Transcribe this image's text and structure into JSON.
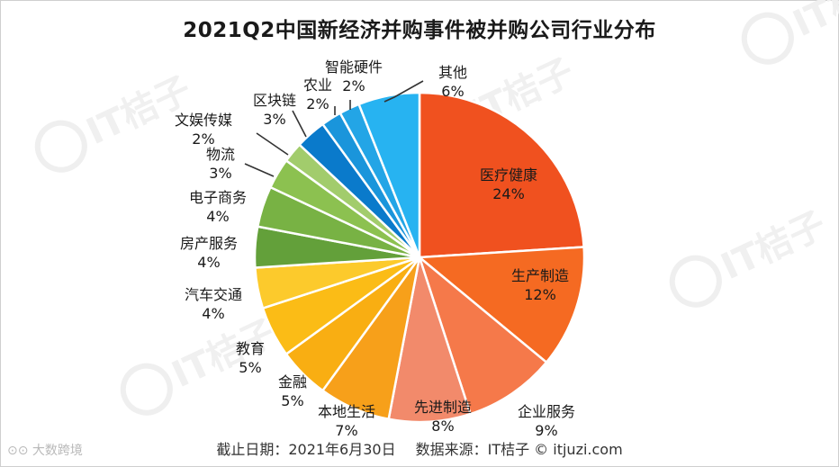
{
  "chart_data": {
    "type": "pie",
    "title": "2021Q2中国新经济并购事件被并购公司行业分布",
    "start_angle_deg": 0,
    "direction": "clockwise",
    "slices": [
      {
        "label": "医疗健康",
        "value": 24,
        "value_text": "24%",
        "color": "#F0511F"
      },
      {
        "label": "生产制造",
        "value": 12,
        "value_text": "12%",
        "color": "#F56A22"
      },
      {
        "label": "企业服务",
        "value": 9,
        "value_text": "9%",
        "color": "#F5794A"
      },
      {
        "label": "先进制造",
        "value": 8,
        "value_text": "8%",
        "color": "#F28A6B"
      },
      {
        "label": "本地生活",
        "value": 7,
        "value_text": "7%",
        "color": "#F7A01A"
      },
      {
        "label": "金融",
        "value": 5,
        "value_text": "5%",
        "color": "#F9AE12"
      },
      {
        "label": "教育",
        "value": 5,
        "value_text": "5%",
        "color": "#FBBC16"
      },
      {
        "label": "汽车交通",
        "value": 4,
        "value_text": "4%",
        "color": "#FCCA2C"
      },
      {
        "label": "房产服务",
        "value": 4,
        "value_text": "4%",
        "color": "#63A03A"
      },
      {
        "label": "电子商务",
        "value": 4,
        "value_text": "4%",
        "color": "#78B244"
      },
      {
        "label": "物流",
        "value": 3,
        "value_text": "3%",
        "color": "#8CC150"
      },
      {
        "label": "文娱传媒",
        "value": 2,
        "value_text": "2%",
        "color": "#A2CC6C"
      },
      {
        "label": "区块链",
        "value": 3,
        "value_text": "3%",
        "color": "#0A7ACB"
      },
      {
        "label": "农业",
        "value": 2,
        "value_text": "2%",
        "color": "#1A95DB"
      },
      {
        "label": "智能硬件",
        "value": 2,
        "value_text": "2%",
        "color": "#23A5E6"
      },
      {
        "label": "其他",
        "value": 6,
        "value_text": "6%",
        "color": "#27B3F1"
      }
    ]
  },
  "footer": {
    "date_text": "截止日期：2021年6月30日",
    "source_text": "数据来源：IT桔子 © itjuzi.com"
  },
  "watermark": {
    "text": "IT桔子",
    "brand": "大数跨境"
  }
}
